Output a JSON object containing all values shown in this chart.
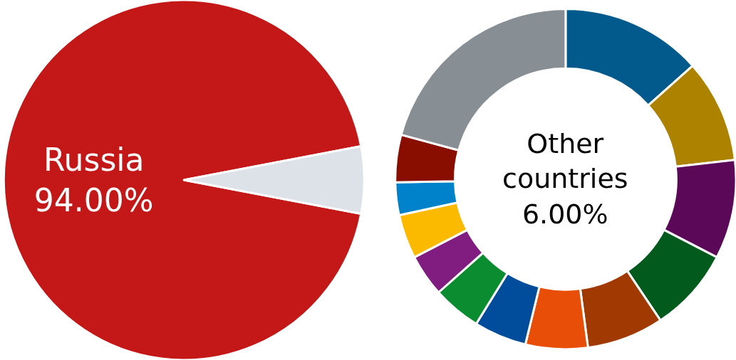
{
  "chart_data": [
    {
      "type": "pie",
      "categories": [
        "Russia",
        null
      ],
      "values": [
        94,
        6
      ],
      "colors": [
        "#c41718",
        "#dde2e8"
      ],
      "value_labels": [
        "94.00%",
        null
      ]
    },
    {
      "type": "donut",
      "categories": [
        null,
        null,
        null,
        null,
        null,
        null,
        null,
        null,
        null,
        null,
        null,
        null,
        null
      ],
      "values": [
        13.4,
        9.8,
        9.4,
        8.0,
        7.3,
        5.9,
        5.0,
        4.6,
        4.0,
        4.2,
        3.1,
        4.5,
        20.8
      ],
      "colors": [
        "#025a8c",
        "#ad8200",
        "#5c0859",
        "#025b1c",
        "#a03902",
        "#e84e07",
        "#014d9c",
        "#0b8c30",
        "#811d80",
        "#fbba00",
        "#0082ca",
        "#8a0e00",
        "#878f94"
      ],
      "annotations": [
        "Other\ncountries\n6.00%"
      ]
    }
  ]
}
